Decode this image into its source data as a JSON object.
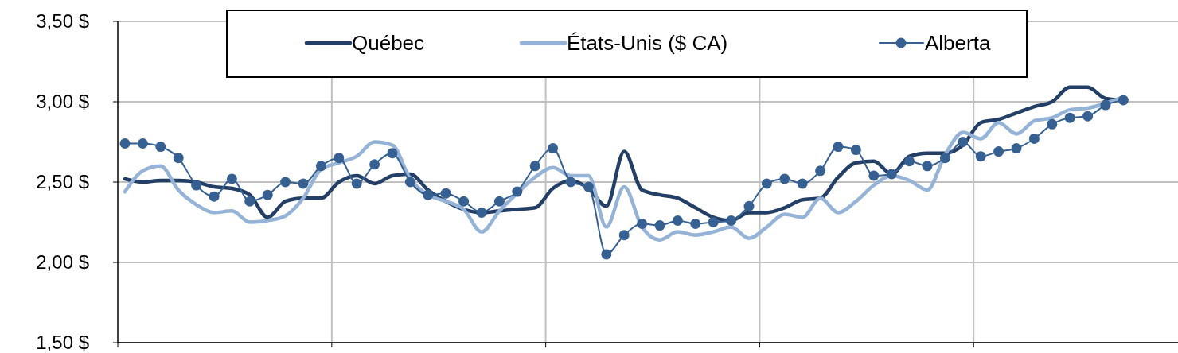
{
  "chart_data": {
    "type": "line",
    "categories": [
      null,
      null,
      null,
      null,
      null,
      null,
      null,
      null,
      null,
      null,
      null,
      null,
      null,
      null,
      null,
      null,
      null,
      null,
      null,
      null,
      null,
      null,
      null,
      null,
      null,
      null,
      null,
      null,
      null,
      null,
      null,
      null,
      null,
      null,
      null,
      null,
      null,
      null,
      null,
      null,
      null,
      null,
      null,
      null,
      null,
      null,
      null,
      null,
      null,
      null,
      null,
      null,
      null,
      null,
      null,
      null,
      null
    ],
    "ylim": [
      1.5,
      3.5
    ],
    "yticks": [
      {
        "value": 1.5,
        "label": "1,50  $"
      },
      {
        "value": 2,
        "label": "2,00  $"
      },
      {
        "value": 2.5,
        "label": "2,50  $"
      },
      {
        "value": 3,
        "label": "3,00  $"
      },
      {
        "value": 3.5,
        "label": "3,50  $"
      }
    ],
    "grid": true,
    "legend": "top",
    "series": [
      {
        "name": "Québec",
        "color": "#243f66",
        "marker": "none",
        "values": [
          2.52,
          2.5,
          2.51,
          2.51,
          2.5,
          2.47,
          2.46,
          2.42,
          2.28,
          2.38,
          2.4,
          2.4,
          2.5,
          2.54,
          2.49,
          2.54,
          2.55,
          2.45,
          2.38,
          2.33,
          2.31,
          2.32,
          2.33,
          2.34,
          2.46,
          2.51,
          2.46,
          2.35,
          2.69,
          2.45,
          2.42,
          2.4,
          2.34,
          2.28,
          2.26,
          2.31,
          2.31,
          2.34,
          2.39,
          2.4,
          2.53,
          2.62,
          2.63,
          2.55,
          2.66,
          2.68,
          2.68,
          2.73,
          2.87,
          2.89,
          2.93,
          2.97,
          3.0,
          3.09,
          3.09,
          3.02,
          3.01
        ]
      },
      {
        "name": "États-Unis ($ CA)",
        "color": "#95b3d7",
        "marker": "none",
        "values": [
          2.44,
          2.57,
          2.6,
          2.45,
          2.36,
          2.31,
          2.32,
          2.25,
          2.26,
          2.29,
          2.4,
          2.58,
          2.62,
          2.66,
          2.75,
          2.73,
          2.52,
          2.42,
          2.38,
          2.33,
          2.19,
          2.32,
          2.43,
          2.53,
          2.59,
          2.54,
          2.54,
          2.22,
          2.47,
          2.22,
          2.14,
          2.19,
          2.17,
          2.19,
          2.22,
          2.15,
          2.22,
          2.3,
          2.28,
          2.4,
          2.31,
          2.38,
          2.48,
          2.54,
          2.51,
          2.45,
          2.67,
          2.81,
          2.77,
          2.87,
          2.8,
          2.88,
          2.9,
          2.95,
          2.96,
          2.99,
          3.03
        ]
      },
      {
        "name": "Alberta",
        "color": "#366092",
        "marker": "circle",
        "values": [
          2.74,
          2.74,
          2.72,
          2.65,
          2.48,
          2.41,
          2.52,
          2.38,
          2.42,
          2.5,
          2.49,
          2.6,
          2.65,
          2.49,
          2.61,
          2.68,
          2.5,
          2.42,
          2.43,
          2.38,
          2.31,
          2.38,
          2.44,
          2.6,
          2.71,
          2.5,
          2.47,
          2.05,
          2.17,
          2.24,
          2.23,
          2.26,
          2.24,
          2.25,
          2.26,
          2.35,
          2.49,
          2.52,
          2.49,
          2.57,
          2.72,
          2.7,
          2.54,
          2.55,
          2.63,
          2.6,
          2.65,
          2.75,
          2.66,
          2.69,
          2.71,
          2.77,
          2.86,
          2.9,
          2.91,
          2.98,
          3.01
        ]
      }
    ]
  }
}
